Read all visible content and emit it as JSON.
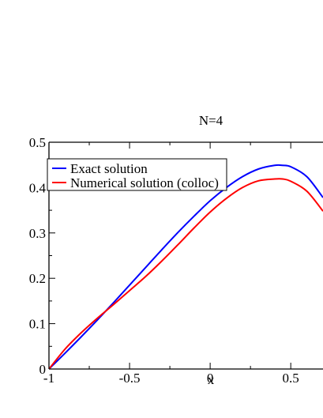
{
  "chart_data": {
    "type": "line",
    "title": "N=4",
    "xlabel": "x",
    "ylabel": "",
    "xlim": [
      -1,
      0.7
    ],
    "ylim": [
      0,
      0.5
    ],
    "x_ticks": [
      -1,
      -0.5,
      0,
      0.5
    ],
    "x_tick_labels": [
      "-1",
      "-0.5",
      "0",
      "0.5"
    ],
    "y_ticks": [
      0,
      0.1,
      0.2,
      0.3,
      0.4,
      0.5
    ],
    "y_tick_labels": [
      "0",
      "0.1",
      "0.2",
      "0.3",
      "0.4",
      "0.5"
    ],
    "grid": false,
    "legend": "top-left",
    "series": [
      {
        "name": "Exact solution",
        "color": "#0000ff",
        "x": [
          -1,
          -0.9,
          -0.8,
          -0.7,
          -0.6,
          -0.5,
          -0.4,
          -0.3,
          -0.2,
          -0.1,
          0,
          0.1,
          0.2,
          0.3,
          0.4,
          0.45,
          0.5,
          0.6,
          0.7
        ],
        "y": [
          0,
          0.035,
          0.071,
          0.108,
          0.146,
          0.185,
          0.224,
          0.263,
          0.301,
          0.337,
          0.371,
          0.4,
          0.424,
          0.441,
          0.449,
          0.449,
          0.446,
          0.424,
          0.378
        ]
      },
      {
        "name": "Numerical solution (colloc)",
        "color": "#ff0000",
        "x": [
          -1,
          -0.9,
          -0.8,
          -0.7,
          -0.6,
          -0.5,
          -0.4,
          -0.3,
          -0.2,
          -0.1,
          0,
          0.1,
          0.2,
          0.3,
          0.4,
          0.45,
          0.5,
          0.6,
          0.7
        ],
        "y": [
          0,
          0.044,
          0.08,
          0.112,
          0.142,
          0.173,
          0.204,
          0.238,
          0.274,
          0.311,
          0.346,
          0.376,
          0.4,
          0.415,
          0.419,
          0.419,
          0.414,
          0.392,
          0.348
        ]
      }
    ]
  }
}
